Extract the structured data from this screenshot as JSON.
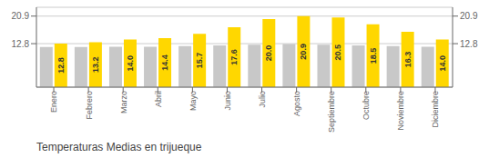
{
  "chart_data": {
    "type": "bar",
    "title": "Temperaturas Medias en trijueque",
    "categories": [
      "Enero",
      "Febrero",
      "Marzo",
      "Abril",
      "Mayo",
      "Junio",
      "Julio",
      "Agosto",
      "Septiembre",
      "Octubre",
      "Noviembre",
      "Diciembre"
    ],
    "series": [
      {
        "color": "#C8C8C8",
        "values": [
          11.8,
          11.8,
          11.9,
          11.9,
          12.1,
          12.3,
          12.5,
          12.7,
          12.5,
          12.3,
          12.1,
          11.9
        ]
      },
      {
        "color": "#FFD700",
        "values": [
          12.8,
          13.2,
          14.0,
          14.4,
          15.7,
          17.6,
          20.0,
          20.9,
          20.5,
          18.5,
          16.3,
          14.0
        ],
        "data_labels": true,
        "value_labels": [
          "12.8",
          "13.2",
          "14.0",
          "14.4",
          "15.7",
          "17.6",
          "20.0",
          "20.9",
          "20.5",
          "18.5",
          "16.3",
          "14.0"
        ]
      }
    ],
    "ylim": [
      0,
      23.5
    ],
    "yticks": [
      12.8,
      20.9
    ],
    "grid": true
  }
}
